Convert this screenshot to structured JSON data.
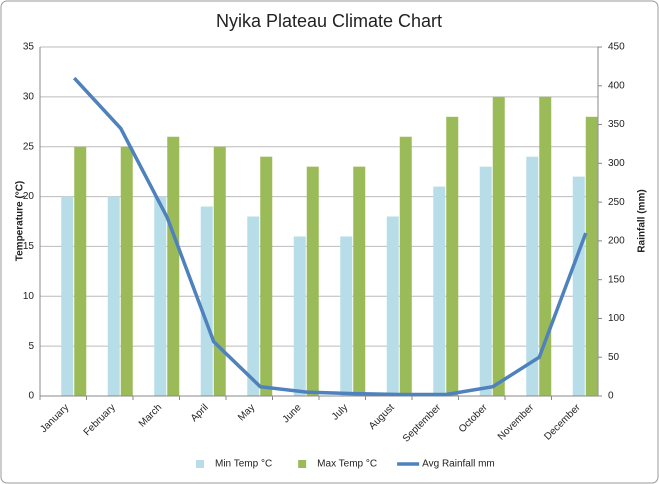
{
  "chart_data": {
    "type": "bar",
    "title": "Nyika Plateau Climate Chart",
    "ylabel": "Temperature  (°C)",
    "y2label": "Rainfall (mm)",
    "categories": [
      "January",
      "February",
      "March",
      "April",
      "May",
      "June",
      "July",
      "August",
      "September",
      "October",
      "November",
      "December"
    ],
    "series": [
      {
        "name": "Min Temp °C",
        "color": "#b7dde8",
        "values": [
          20,
          20,
          20,
          19,
          18,
          16,
          16,
          18,
          21,
          23,
          24,
          22
        ]
      },
      {
        "name": "Max Temp °C",
        "color": "#9bbb59",
        "values": [
          25,
          25,
          26,
          25,
          24,
          23,
          23,
          26,
          28,
          30,
          30,
          28
        ]
      },
      {
        "name": "Avg Rainfall mm",
        "color": "#4f81bd",
        "type": "line",
        "axis": "y2",
        "values": [
          410,
          345,
          230,
          70,
          12,
          5,
          3,
          2,
          2,
          12,
          50,
          210
        ]
      }
    ],
    "ylim": [
      0,
      35
    ],
    "yticks": [
      0,
      5,
      10,
      15,
      20,
      25,
      30,
      35
    ],
    "y2lim": [
      0,
      450
    ],
    "y2ticks": [
      0,
      50,
      100,
      150,
      200,
      250,
      300,
      350,
      400,
      450
    ],
    "grid": true,
    "legend": "bottom"
  }
}
